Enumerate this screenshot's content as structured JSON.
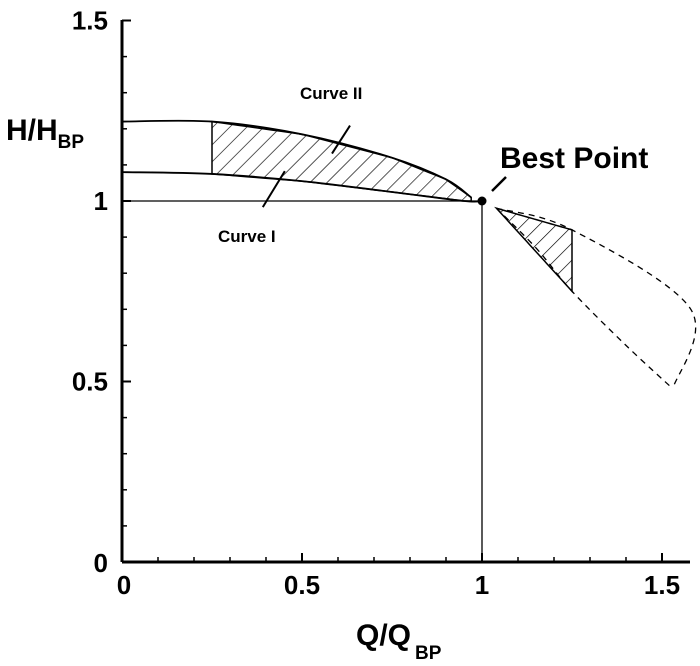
{
  "chart_data": {
    "type": "line",
    "xlabel": {
      "main": "Q/Q",
      "sub": "BP"
    },
    "ylabel": {
      "main": "H/H",
      "sub": "BP"
    },
    "xlim": [
      0,
      1.6
    ],
    "ylim": [
      0,
      1.5
    ],
    "x_ticks": [
      "0",
      "0.5",
      "1",
      "1.5"
    ],
    "y_ticks": [
      "0",
      "0.5",
      "1",
      "1.5"
    ],
    "grid": false,
    "series": [
      {
        "name": "Curve I",
        "x": [
          0,
          0.25,
          0.5,
          0.75,
          0.95,
          1.0
        ],
        "y": [
          1.08,
          1.075,
          1.055,
          1.025,
          1.0,
          1.0
        ]
      },
      {
        "name": "Curve II",
        "x": [
          0,
          0.25,
          0.5,
          0.75,
          0.9,
          0.97
        ],
        "y": [
          1.22,
          1.22,
          1.185,
          1.12,
          1.06,
          1.01
        ]
      },
      {
        "name": "",
        "style": "dashed",
        "x": [
          1.04,
          1.25,
          1.58,
          1.53
        ],
        "y": [
          0.98,
          0.92,
          0.7,
          0.48
        ]
      },
      {
        "name": "",
        "style": "dashed",
        "x": [
          1.04,
          1.15,
          1.25,
          1.4,
          1.53
        ],
        "y": [
          0.98,
          0.87,
          0.75,
          0.6,
          0.48
        ]
      }
    ],
    "hatched_regions": [
      {
        "x_range": [
          0.25,
          0.97
        ],
        "between": [
          "Curve I",
          "Curve II"
        ]
      },
      {
        "x_range": [
          1.04,
          1.25
        ],
        "upper_y": [
          0.98,
          0.92
        ],
        "lower_y": [
          0.98,
          0.75
        ]
      }
    ],
    "reference_lines": {
      "horizontal": {
        "y": 1.0,
        "x_range": [
          0,
          1.0
        ]
      },
      "vertical": {
        "x": 1.0,
        "y_range": [
          0,
          1.0
        ]
      }
    },
    "annotations": [
      {
        "text": "Best Point",
        "x": 1.0,
        "y": 1.0,
        "marker": "dot"
      },
      {
        "text": "Curve I",
        "points_to": "Curve I"
      },
      {
        "text": "Curve II",
        "points_to": "Curve II"
      }
    ]
  }
}
